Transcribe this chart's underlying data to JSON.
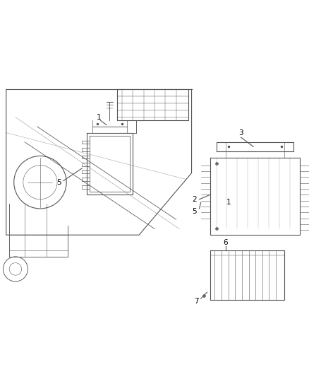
{
  "bg_color": "#ffffff",
  "line_color": "#555555",
  "label_color": "#000000",
  "fig_width": 4.38,
  "fig_height": 5.33,
  "dpi": 100
}
